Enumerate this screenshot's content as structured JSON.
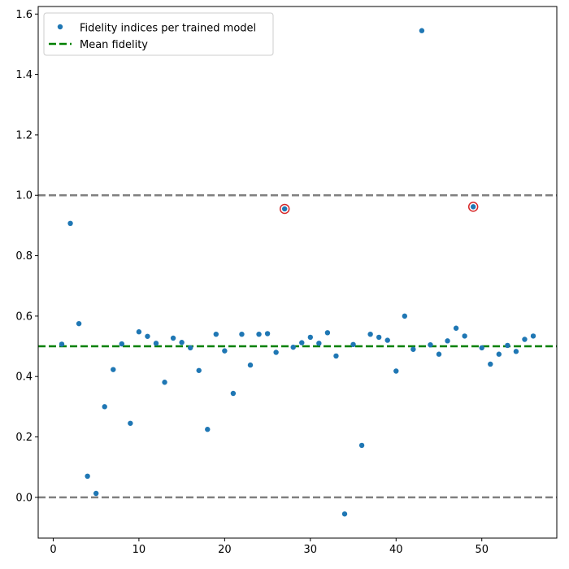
{
  "chart_data": {
    "type": "scatter",
    "xlim": [
      -1.75,
      58.75
    ],
    "ylim": [
      -0.135,
      1.625
    ],
    "xticks": [
      0,
      10,
      20,
      30,
      40,
      50
    ],
    "yticks": [
      0.0,
      0.2,
      0.4,
      0.6,
      0.8,
      1.0,
      1.2,
      1.4,
      1.6
    ],
    "xtick_labels": [
      "0",
      "10",
      "20",
      "30",
      "40",
      "50"
    ],
    "ytick_labels": [
      "0.0",
      "0.2",
      "0.4",
      "0.6",
      "0.8",
      "1.0",
      "1.2",
      "1.4",
      "1.6"
    ],
    "grid": false,
    "legend_position": "upper-left",
    "series": [
      {
        "name": "Fidelity indices per trained model",
        "color": "#1f77b4",
        "x": [
          1,
          2,
          3,
          4,
          5,
          6,
          7,
          8,
          9,
          10,
          11,
          12,
          13,
          14,
          15,
          16,
          17,
          18,
          19,
          20,
          21,
          22,
          23,
          24,
          25,
          26,
          27,
          28,
          29,
          30,
          31,
          32,
          33,
          34,
          35,
          36,
          37,
          38,
          39,
          40,
          41,
          42,
          43,
          44,
          45,
          46,
          47,
          48,
          49,
          50,
          51,
          52,
          53,
          54,
          55,
          56
        ],
        "y": [
          0.507,
          0.907,
          0.575,
          0.07,
          0.013,
          0.3,
          0.423,
          0.508,
          0.245,
          0.548,
          0.533,
          0.51,
          0.381,
          0.527,
          0.513,
          0.495,
          0.42,
          0.225,
          0.54,
          0.485,
          0.344,
          0.54,
          0.438,
          0.54,
          0.542,
          0.48,
          0.955,
          0.497,
          0.512,
          0.53,
          0.51,
          0.545,
          0.468,
          -0.055,
          0.506,
          0.172,
          0.54,
          0.53,
          0.52,
          0.418,
          0.6,
          0.49,
          1.545,
          0.505,
          0.474,
          0.518,
          0.56,
          0.534,
          0.962,
          0.495,
          0.441,
          0.474,
          0.503,
          0.483,
          0.523,
          0.534
        ]
      }
    ],
    "reference_lines": [
      {
        "y": 0.5,
        "name": "Mean fidelity",
        "color": "#008000",
        "style": "dashed"
      },
      {
        "y": 1.0,
        "color": "#808080",
        "style": "dashed"
      },
      {
        "y": 0.0,
        "color": "#808080",
        "style": "dashed"
      }
    ],
    "highlighted_points": [
      {
        "x": 27,
        "y": 0.955,
        "color": "#d62728"
      },
      {
        "x": 49,
        "y": 0.962,
        "color": "#d62728"
      }
    ]
  }
}
